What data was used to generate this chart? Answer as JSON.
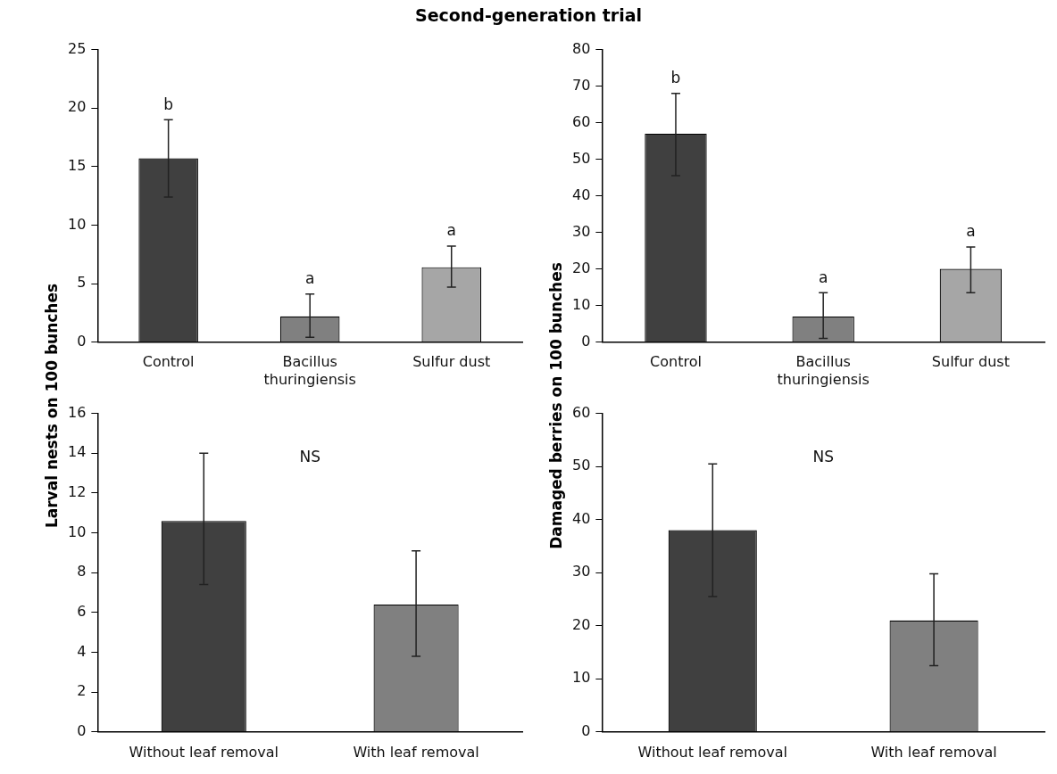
{
  "chart_data": [
    {
      "type": "bar",
      "title": "Second-generation trial",
      "ylabel": "Larval nests on 100 bunches",
      "categories": [
        "Control",
        "Bacillus thuringiensis",
        "Sulfur dust"
      ],
      "values": [
        15.7,
        2.2,
        6.4
      ],
      "colors": [
        "#404040",
        "#808080",
        "#a6a6a6"
      ],
      "errors": [
        [
          12.4,
          19.0
        ],
        [
          0.4,
          4.1
        ],
        [
          4.7,
          8.2
        ]
      ],
      "ylim": [
        0,
        25
      ],
      "yticks": [
        0,
        5,
        10,
        15,
        20,
        25
      ],
      "grid": false,
      "legend": false,
      "value_labels": [
        "b",
        "a",
        "a"
      ]
    },
    {
      "type": "bar",
      "ylabel": "Damaged berries on 100 bunches",
      "categories": [
        "Control",
        "Bacillus thuringiensis",
        "Sulfur dust"
      ],
      "values": [
        57,
        7,
        20
      ],
      "colors": [
        "#404040",
        "#808080",
        "#a6a6a6"
      ],
      "errors": [
        [
          45.5,
          68
        ],
        [
          1,
          13.5
        ],
        [
          13.5,
          26
        ]
      ],
      "ylim": [
        0,
        80
      ],
      "yticks": [
        0,
        10,
        20,
        30,
        40,
        50,
        60,
        70,
        80
      ],
      "grid": false,
      "legend": false,
      "value_labels": [
        "b",
        "a",
        "a"
      ]
    },
    {
      "type": "bar",
      "categories": [
        "Without leaf removal",
        "With leaf removal"
      ],
      "values": [
        10.6,
        6.4
      ],
      "colors": [
        "#404040",
        "#808080"
      ],
      "errors": [
        [
          7.4,
          14
        ],
        [
          3.8,
          9.1
        ]
      ],
      "ylim": [
        0,
        16
      ],
      "yticks": [
        0,
        2,
        4,
        6,
        8,
        10,
        12,
        14,
        16
      ],
      "grid": false,
      "legend": false,
      "annotations": [
        "NS"
      ]
    },
    {
      "type": "bar",
      "categories": [
        "Without leaf removal",
        "With leaf removal"
      ],
      "values": [
        38,
        21
      ],
      "colors": [
        "#404040",
        "#808080"
      ],
      "errors": [
        [
          25.5,
          50.5
        ],
        [
          12.5,
          29.8
        ]
      ],
      "ylim": [
        0,
        60
      ],
      "yticks": [
        0,
        10,
        20,
        30,
        40,
        50,
        60
      ],
      "grid": false,
      "legend": false,
      "annotations": [
        "NS"
      ]
    }
  ]
}
